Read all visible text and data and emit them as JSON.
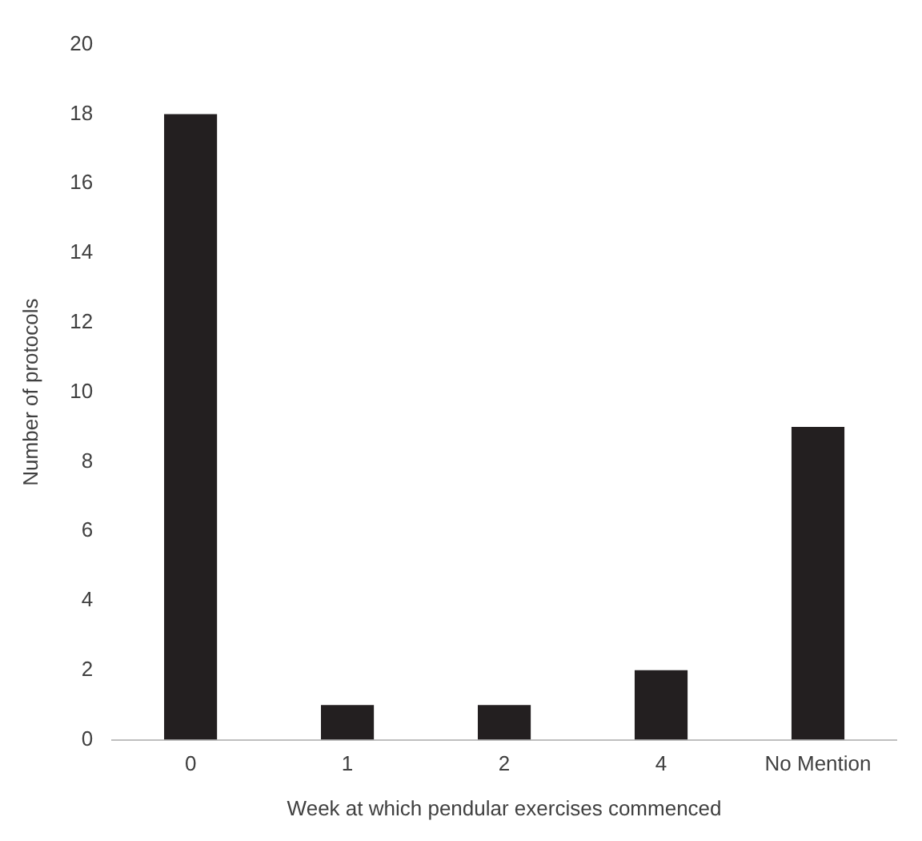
{
  "chart_data": {
    "type": "bar",
    "xlabel": "Week at which pendular exercises commenced",
    "ylabel": "Number of protocols",
    "categories": [
      "0",
      "1",
      "2",
      "4",
      "No Mention"
    ],
    "values": [
      18,
      1,
      1,
      2,
      9
    ],
    "color": "#231f20",
    "ylim": [
      0,
      20
    ],
    "yticks": [
      0,
      2,
      4,
      6,
      8,
      10,
      12,
      14,
      16,
      18,
      20
    ],
    "grid": false,
    "legend": false
  }
}
